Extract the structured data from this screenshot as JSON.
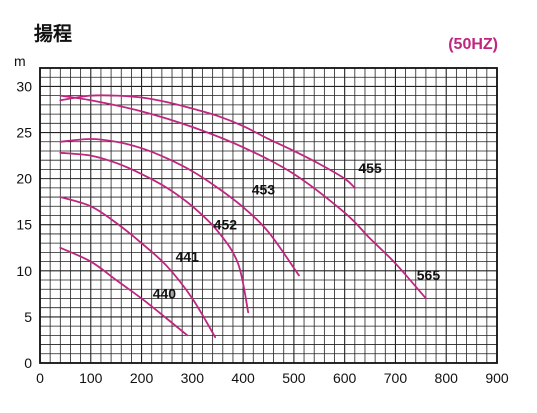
{
  "chart_data": {
    "type": "line",
    "title": "揚程",
    "frequency_label": "(50HZ)",
    "ylabel": "m",
    "xlabel": "",
    "xlim": [
      0,
      900
    ],
    "ylim": [
      0,
      32
    ],
    "x_ticks": [
      "0",
      "100",
      "200",
      "300",
      "400",
      "500",
      "600",
      "700",
      "800",
      "900"
    ],
    "y_ticks": [
      "0",
      "5",
      "10",
      "15",
      "20",
      "25",
      "30"
    ],
    "grid": true,
    "colors": {
      "curve": "#c0267e",
      "grid": "#222222",
      "frequency_label": "#c0267e"
    },
    "series": [
      {
        "name": "440",
        "x": [
          40,
          100,
          150,
          200,
          250,
          290
        ],
        "y": [
          12.5,
          11.0,
          9.0,
          7.0,
          4.8,
          3.0
        ]
      },
      {
        "name": "441",
        "x": [
          40,
          100,
          150,
          200,
          250,
          300,
          345
        ],
        "y": [
          18.0,
          17.0,
          15.2,
          13.0,
          10.5,
          7.0,
          2.8
        ]
      },
      {
        "name": "452",
        "x": [
          40,
          100,
          150,
          200,
          250,
          300,
          350,
          390,
          410
        ],
        "y": [
          22.8,
          22.5,
          21.7,
          20.5,
          19.0,
          17.0,
          14.3,
          10.8,
          5.5
        ]
      },
      {
        "name": "453",
        "x": [
          40,
          100,
          150,
          200,
          250,
          300,
          350,
          400,
          450,
          510
        ],
        "y": [
          24.0,
          24.3,
          24.0,
          23.3,
          22.2,
          20.8,
          19.0,
          16.9,
          14.2,
          9.5
        ]
      },
      {
        "name": "455",
        "x": [
          40,
          100,
          150,
          200,
          250,
          300,
          350,
          400,
          450,
          500,
          550,
          600,
          620
        ],
        "y": [
          28.5,
          29.0,
          29.0,
          28.8,
          28.3,
          27.6,
          26.8,
          25.7,
          24.3,
          23.0,
          21.6,
          20.0,
          19.0
        ]
      },
      {
        "name": "565",
        "x": [
          40,
          100,
          200,
          300,
          400,
          500,
          600,
          650,
          700,
          760
        ],
        "y": [
          29.0,
          28.5,
          27.3,
          25.6,
          23.4,
          20.5,
          16.3,
          13.5,
          10.8,
          7.0
        ]
      }
    ]
  }
}
